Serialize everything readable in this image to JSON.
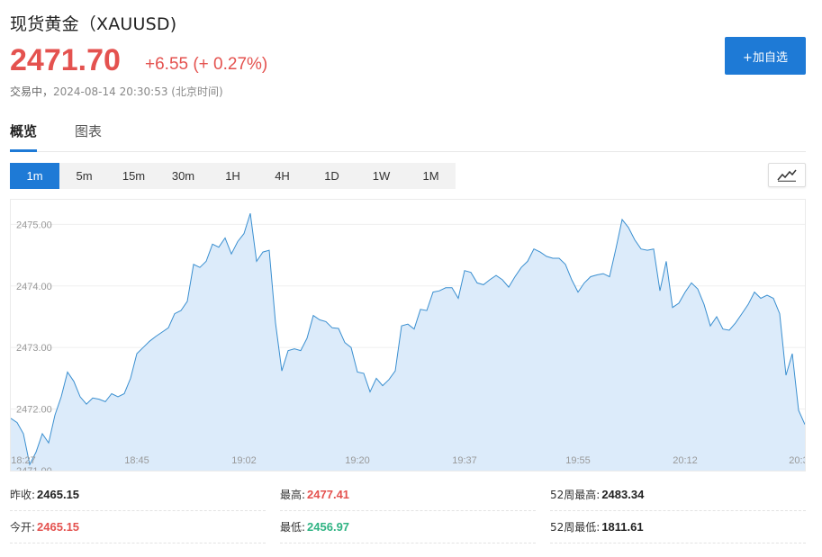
{
  "header": {
    "title": "现货黄金（XAUUSD)",
    "price": "2471.70",
    "change": "+6.55 (+ 0.27%)",
    "status": "交易中，",
    "timestamp": "2024-08-14 20:30:53 (北京时间)",
    "add_watchlist_label": "+加自选"
  },
  "tabs": [
    {
      "label": "概览",
      "active": true
    },
    {
      "label": "图表",
      "active": false
    }
  ],
  "periods": [
    {
      "label": "1m",
      "active": true
    },
    {
      "label": "5m"
    },
    {
      "label": "15m"
    },
    {
      "label": "30m"
    },
    {
      "label": "1H"
    },
    {
      "label": "4H"
    },
    {
      "label": "1D"
    },
    {
      "label": "1W"
    },
    {
      "label": "1M"
    }
  ],
  "chart_type_icon": "line-chart-icon",
  "colors": {
    "accent": "#1e7ad6",
    "up": "#e4524f",
    "down": "#2fb383",
    "line": "#3a8fd0",
    "fill": "#dcebfa"
  },
  "chart_data": {
    "type": "area",
    "ylim": [
      2471.0,
      2475.4
    ],
    "y_ticks": [
      "2475.00",
      "2474.00",
      "2473.00",
      "2472.00",
      "2471.00"
    ],
    "y_tick_values": [
      2475,
      2474,
      2473,
      2472,
      2471
    ],
    "x_ticks": [
      "18:27",
      "18:45",
      "19:02",
      "19:20",
      "19:37",
      "19:55",
      "20:12",
      "20:3"
    ],
    "x_tick_values": [
      1107,
      1125,
      1142,
      1160,
      1177,
      1195,
      1212,
      1230
    ],
    "x_range": [
      1105,
      1231
    ],
    "grid": true,
    "series": [
      {
        "points": [
          [
            1105,
            2471.85
          ],
          [
            1106,
            2471.78
          ],
          [
            1107,
            2471.6
          ],
          [
            1108,
            2471.1
          ],
          [
            1109,
            2471.3
          ],
          [
            1110,
            2471.6
          ],
          [
            1111,
            2471.45
          ],
          [
            1112,
            2471.9
          ],
          [
            1113,
            2472.2
          ],
          [
            1114,
            2472.6
          ],
          [
            1115,
            2472.45
          ],
          [
            1116,
            2472.2
          ],
          [
            1117,
            2472.08
          ],
          [
            1118,
            2472.18
          ],
          [
            1119,
            2472.16
          ],
          [
            1120,
            2472.12
          ],
          [
            1121,
            2472.25
          ],
          [
            1122,
            2472.2
          ],
          [
            1123,
            2472.25
          ],
          [
            1124,
            2472.5
          ],
          [
            1125,
            2472.9
          ],
          [
            1126,
            2473.0
          ],
          [
            1127,
            2473.1
          ],
          [
            1128,
            2473.18
          ],
          [
            1129,
            2473.25
          ],
          [
            1130,
            2473.32
          ],
          [
            1131,
            2473.55
          ],
          [
            1132,
            2473.6
          ],
          [
            1133,
            2473.75
          ],
          [
            1134,
            2474.35
          ],
          [
            1135,
            2474.3
          ],
          [
            1136,
            2474.4
          ],
          [
            1137,
            2474.68
          ],
          [
            1138,
            2474.63
          ],
          [
            1139,
            2474.78
          ],
          [
            1140,
            2474.52
          ],
          [
            1141,
            2474.72
          ],
          [
            1142,
            2474.85
          ],
          [
            1143,
            2475.18
          ],
          [
            1144,
            2474.4
          ],
          [
            1145,
            2474.55
          ],
          [
            1146,
            2474.58
          ],
          [
            1147,
            2473.4
          ],
          [
            1148,
            2472.62
          ],
          [
            1149,
            2472.95
          ],
          [
            1150,
            2472.98
          ],
          [
            1151,
            2472.95
          ],
          [
            1152,
            2473.15
          ],
          [
            1153,
            2473.52
          ],
          [
            1154,
            2473.45
          ],
          [
            1155,
            2473.42
          ],
          [
            1156,
            2473.32
          ],
          [
            1157,
            2473.31
          ],
          [
            1158,
            2473.08
          ],
          [
            1159,
            2473.0
          ],
          [
            1160,
            2472.6
          ],
          [
            1161,
            2472.58
          ],
          [
            1162,
            2472.28
          ],
          [
            1163,
            2472.5
          ],
          [
            1164,
            2472.38
          ],
          [
            1165,
            2472.48
          ],
          [
            1166,
            2472.62
          ],
          [
            1167,
            2473.35
          ],
          [
            1168,
            2473.38
          ],
          [
            1169,
            2473.3
          ],
          [
            1170,
            2473.62
          ],
          [
            1171,
            2473.6
          ],
          [
            1172,
            2473.9
          ],
          [
            1173,
            2473.92
          ],
          [
            1174,
            2473.97
          ],
          [
            1175,
            2473.97
          ],
          [
            1176,
            2473.8
          ],
          [
            1177,
            2474.25
          ],
          [
            1178,
            2474.22
          ],
          [
            1179,
            2474.05
          ],
          [
            1180,
            2474.02
          ],
          [
            1181,
            2474.1
          ],
          [
            1182,
            2474.17
          ],
          [
            1183,
            2474.1
          ],
          [
            1184,
            2473.98
          ],
          [
            1185,
            2474.15
          ],
          [
            1186,
            2474.3
          ],
          [
            1187,
            2474.4
          ],
          [
            1188,
            2474.6
          ],
          [
            1189,
            2474.55
          ],
          [
            1190,
            2474.48
          ],
          [
            1191,
            2474.45
          ],
          [
            1192,
            2474.45
          ],
          [
            1193,
            2474.35
          ],
          [
            1194,
            2474.1
          ],
          [
            1195,
            2473.9
          ],
          [
            1196,
            2474.05
          ],
          [
            1197,
            2474.15
          ],
          [
            1198,
            2474.18
          ],
          [
            1199,
            2474.2
          ],
          [
            1200,
            2474.15
          ],
          [
            1201,
            2474.6
          ],
          [
            1202,
            2475.08
          ],
          [
            1203,
            2474.95
          ],
          [
            1204,
            2474.75
          ],
          [
            1205,
            2474.6
          ],
          [
            1206,
            2474.58
          ],
          [
            1207,
            2474.6
          ],
          [
            1208,
            2473.92
          ],
          [
            1209,
            2474.4
          ],
          [
            1210,
            2473.65
          ],
          [
            1211,
            2473.72
          ],
          [
            1212,
            2473.9
          ],
          [
            1213,
            2474.05
          ],
          [
            1214,
            2473.95
          ],
          [
            1215,
            2473.7
          ],
          [
            1216,
            2473.35
          ],
          [
            1217,
            2473.5
          ],
          [
            1218,
            2473.3
          ],
          [
            1219,
            2473.28
          ],
          [
            1220,
            2473.4
          ],
          [
            1221,
            2473.55
          ],
          [
            1222,
            2473.7
          ],
          [
            1223,
            2473.9
          ],
          [
            1224,
            2473.8
          ],
          [
            1225,
            2473.85
          ],
          [
            1226,
            2473.8
          ],
          [
            1227,
            2473.55
          ],
          [
            1228,
            2472.55
          ],
          [
            1229,
            2472.9
          ],
          [
            1230,
            2471.98
          ],
          [
            1231,
            2471.75
          ]
        ]
      }
    ]
  },
  "stats": [
    {
      "label": "昨收:",
      "value": "2465.15",
      "color": "dark"
    },
    {
      "label": "最高:",
      "value": "2477.41",
      "color": "red"
    },
    {
      "label": "52周最高:",
      "value": "2483.34",
      "color": "dark"
    },
    {
      "label": "今开:",
      "value": "2465.15",
      "color": "red"
    },
    {
      "label": "最低:",
      "value": "2456.97",
      "color": "green"
    },
    {
      "label": "52周最低:",
      "value": "1811.61",
      "color": "dark"
    }
  ]
}
